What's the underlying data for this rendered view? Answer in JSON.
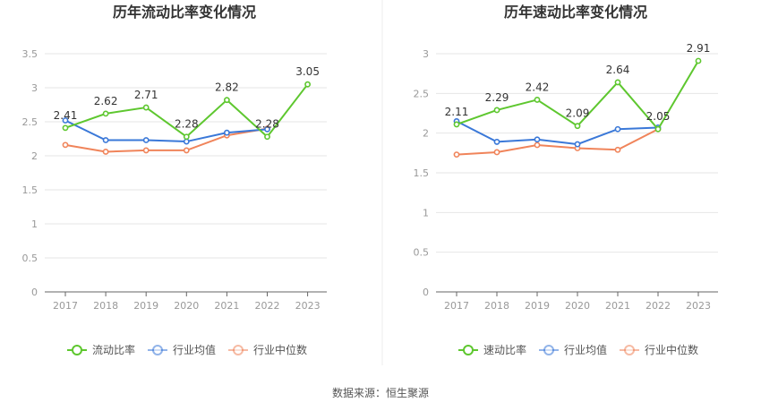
{
  "chart_data": [
    {
      "type": "line",
      "title": "历年流动比率变化情况",
      "categories": [
        "2017",
        "2018",
        "2019",
        "2020",
        "2021",
        "2022",
        "2023"
      ],
      "yticks": [
        "0",
        "0.5",
        "1",
        "1.5",
        "2",
        "2.5",
        "3",
        "3.5"
      ],
      "ylim": [
        0,
        3.5
      ],
      "grid": true,
      "legend_position": "bottom",
      "series": [
        {
          "name": "流动比率",
          "color": "#5ec72f",
          "values": [
            2.41,
            2.62,
            2.71,
            2.28,
            2.82,
            2.28,
            3.05
          ],
          "labels": [
            "2.41",
            "2.62",
            "2.71",
            "2.28",
            "2.82",
            "2.28",
            "3.05"
          ]
        },
        {
          "name": "行业均值",
          "color": "#3a78d8",
          "values": [
            2.52,
            2.23,
            2.23,
            2.21,
            2.34,
            2.39,
            null
          ]
        },
        {
          "name": "行业中位数",
          "color": "#f0845a",
          "values": [
            2.16,
            2.06,
            2.08,
            2.08,
            2.3,
            2.4,
            null
          ]
        }
      ]
    },
    {
      "type": "line",
      "title": "历年速动比率变化情况",
      "categories": [
        "2017",
        "2018",
        "2019",
        "2020",
        "2021",
        "2022",
        "2023"
      ],
      "yticks": [
        "0",
        "0.5",
        "1",
        "1.5",
        "2",
        "2.5",
        "3"
      ],
      "ylim": [
        0,
        3
      ],
      "grid": true,
      "legend_position": "bottom",
      "series": [
        {
          "name": "速动比率",
          "color": "#5ec72f",
          "values": [
            2.11,
            2.29,
            2.42,
            2.09,
            2.64,
            2.05,
            2.91
          ],
          "labels": [
            "2.11",
            "2.29",
            "2.42",
            "2.09",
            "2.64",
            "2.05",
            "2.91"
          ]
        },
        {
          "name": "行业均值",
          "color": "#3a78d8",
          "values": [
            2.15,
            1.89,
            1.92,
            1.86,
            2.05,
            2.07,
            null
          ]
        },
        {
          "name": "行业中位数",
          "color": "#f0845a",
          "values": [
            1.73,
            1.76,
            1.85,
            1.81,
            1.79,
            2.05,
            null
          ]
        }
      ]
    }
  ],
  "footer": {
    "source": "数据来源：恒生聚源"
  }
}
